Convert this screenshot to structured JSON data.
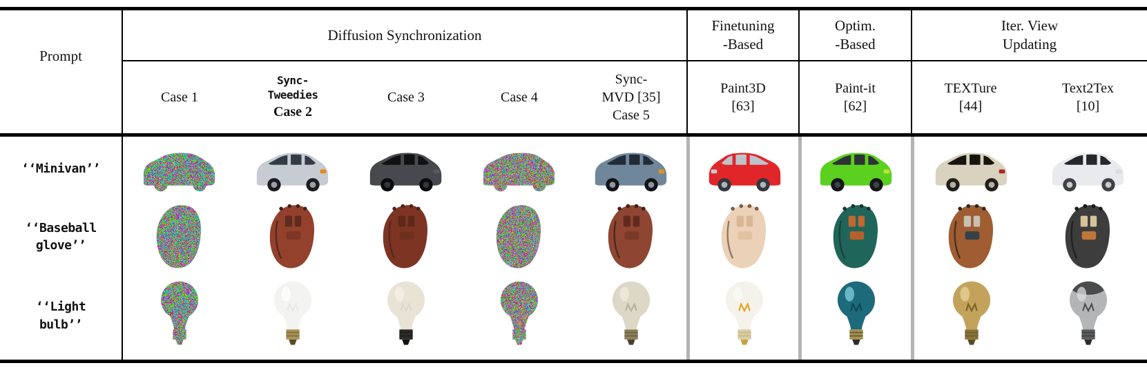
{
  "figure": {
    "colors": {
      "rule_black": "#000000",
      "group_separator_gray": "#b4b4b4",
      "background": "#ffffff"
    },
    "group_headers": [
      {
        "key": "prompt",
        "label": "Prompt"
      },
      {
        "key": "diffusion-synchronization",
        "label": "Diffusion Synchronization"
      },
      {
        "key": "finetuning-based",
        "lines": [
          "Finetuning",
          "-Based"
        ]
      },
      {
        "key": "optim-based",
        "lines": [
          "Optim.",
          "-Based"
        ]
      },
      {
        "key": "iter-view-updating",
        "lines": [
          "Iter. View",
          "Updating"
        ]
      }
    ],
    "method_headers": [
      {
        "key": "case-1",
        "case_label": "Case 1"
      },
      {
        "key": "sync-tweedies-case-2",
        "name_lines": [
          "Sync-",
          "Tweedies"
        ],
        "name_font": "mono",
        "case_label": "Case 2",
        "case_bold": true
      },
      {
        "key": "case-3",
        "case_label": "Case 3"
      },
      {
        "key": "case-4",
        "case_label": "Case 4"
      },
      {
        "key": "sync-mvd-case-5",
        "name_lines": [
          "Sync-",
          "MVD [35]"
        ],
        "case_label": "Case 5"
      },
      {
        "key": "paint3d",
        "name_lines": [
          "Paint3D",
          "[63]"
        ]
      },
      {
        "key": "paint-it",
        "name_lines": [
          "Paint-it",
          "[62]"
        ]
      },
      {
        "key": "texture",
        "name_lines": [
          "TEXTure",
          "[44]"
        ]
      },
      {
        "key": "text2tex",
        "name_lines": [
          "Text2Tex",
          "[10]"
        ]
      }
    ],
    "rows": [
      {
        "key": "minivan",
        "object": "minivan",
        "prompt_lines": [
          "‘‘Minivan’’"
        ],
        "cells": [
          {
            "variant": "noise",
            "seed": "a",
            "desc": "multicolor noise minivan"
          },
          {
            "variant": "shaded",
            "desc": "silver minivan",
            "colors": {
              "body": "#c7cbd2",
              "win": "#333b46",
              "wheel": "#1b1d21",
              "hub": "#9aa0a8",
              "signal": "#e68a1a"
            }
          },
          {
            "variant": "shaded",
            "desc": "dark gray minivan",
            "colors": {
              "body": "#47494f",
              "win": "#0f1113",
              "wheel": "#0b0c0e",
              "hub": "#35373c",
              "signal": "#56585e"
            }
          },
          {
            "variant": "noise",
            "seed": "b",
            "desc": "multicolor noise minivan"
          },
          {
            "variant": "shaded",
            "desc": "blue-gray minivan",
            "colors": {
              "body": "#70879b",
              "win": "#222c36",
              "wheel": "#121418",
              "hub": "#8c96a2",
              "signal": "#e8921f"
            }
          },
          {
            "variant": "shaded",
            "flip": true,
            "desc": "red minivan",
            "colors": {
              "body": "#e02629",
              "win": "#bcc3cb",
              "wheel": "#33373c",
              "hub": "#aeb4ba",
              "signal": "#c4cad0"
            }
          },
          {
            "variant": "shaded",
            "desc": "bright green minivan",
            "colors": {
              "body": "#5bd01f",
              "win": "#2d3237",
              "wheel": "#141619",
              "hub": "#3e4246",
              "signal": "#bfe533"
            }
          },
          {
            "variant": "shaded",
            "desc": "beige minivan",
            "colors": {
              "body": "#d8d2bf",
              "win": "#16140e",
              "wheel": "#211f19",
              "hub": "#b6afa0",
              "signal": "#a9281f"
            }
          },
          {
            "variant": "shaded",
            "desc": "white minivan",
            "colors": {
              "body": "#e8eaed",
              "win": "#25272b",
              "wheel": "#3e4145",
              "hub": "#caccd0",
              "signal": "#d8dadd"
            }
          }
        ]
      },
      {
        "key": "baseball-glove",
        "object": "baseball-glove",
        "prompt_lines": [
          "‘‘Baseball",
          "glove’’"
        ],
        "cells": [
          {
            "variant": "noise",
            "seed": "a",
            "desc": "multicolor noise glove"
          },
          {
            "variant": "shaded",
            "desc": "reddish-brown glove",
            "colors": {
              "body": "#93402d",
              "dark": "#40221a",
              "web": "#5e2c1e",
              "patch": "#7d3525"
            }
          },
          {
            "variant": "shaded",
            "desc": "flat brown glove",
            "colors": {
              "body": "#7d3423",
              "dark": "#4b261c",
              "web": "#5d2818",
              "patch": "#6e2f1f"
            }
          },
          {
            "variant": "noise",
            "seed": "b",
            "desc": "multicolor noise glove"
          },
          {
            "variant": "shaded",
            "desc": "brown leather glove",
            "colors": {
              "body": "#8e4632",
              "dark": "#3e2017",
              "web": "#602a1d",
              "patch": "#7b3929"
            }
          },
          {
            "variant": "shaded",
            "desc": "cream tan glove",
            "colors": {
              "body": "#ebd1b7",
              "dark": "#7b5d45",
              "web": "#d8b795",
              "patch": "#e1c3a3"
            }
          },
          {
            "variant": "shaded",
            "desc": "teal and orange glove",
            "colors": {
              "body": "#20655a",
              "dark": "#173630",
              "web": "#c1682f",
              "patch": "#b3612d"
            }
          },
          {
            "variant": "shaded",
            "desc": "patchy brown-orange glove",
            "colors": {
              "body": "#a05d31",
              "dark": "#2d2721",
              "web": "#c7c1b3",
              "patch": "#35404a"
            }
          },
          {
            "variant": "shaded",
            "desc": "patchy dark-tan glove",
            "colors": {
              "body": "#3d3d3d",
              "dark": "#18191b",
              "web": "#d5c399",
              "patch": "#bf7737"
            }
          }
        ]
      },
      {
        "key": "light-bulb",
        "object": "light-bulb",
        "prompt_lines": [
          "‘‘Light",
          "bulb’’"
        ],
        "cells": [
          {
            "variant": "noise",
            "seed": "a",
            "desc": "multicolor noise bulb"
          },
          {
            "variant": "shaded",
            "desc": "white bulb brass base",
            "colors": {
              "globe": "#f3f3f1",
              "hl": "#ffffff",
              "base": "#ac9458",
              "tip": "#594927",
              "fil": "#e8e8e4"
            }
          },
          {
            "variant": "shaded",
            "desc": "cream bulb black base",
            "colors": {
              "globe": "#e9e3d5",
              "hl": "#f5f1e7",
              "base": "#2a2a28",
              "tip": "#131312",
              "fil": "#ded8ca"
            }
          },
          {
            "variant": "noise",
            "seed": "b",
            "desc": "multicolor noise bulb"
          },
          {
            "variant": "shaded",
            "desc": "clear glass bulb",
            "colors": {
              "globe": "#dcd7c6",
              "hl": "#efebdf",
              "base": "#8c805d",
              "tip": "#4b422b",
              "fil": "#b8b39d"
            }
          },
          {
            "variant": "shaded",
            "desc": "white bulb with filament",
            "colors": {
              "globe": "#f4f2ea",
              "hl": "#fbfaf5",
              "base": "#d8cead",
              "tip": "#c7a33b",
              "fil": "#e1a71b"
            }
          },
          {
            "variant": "shaded",
            "desc": "glossy teal bulb",
            "colors": {
              "globe": "#1d6a7b",
              "hl": "#80d3dc",
              "base": "#a7934d",
              "tip": "#2b2b2b",
              "fil": "#0e4955"
            }
          },
          {
            "variant": "shaded",
            "desc": "golden patterned bulb",
            "colors": {
              "globe": "#c3a35b",
              "hl": "#e7d399",
              "base": "#897539",
              "tip": "#5b4b23",
              "fil": "#796127"
            }
          },
          {
            "variant": "shaded",
            "desc": "silver bulb dark top",
            "colors": {
              "globe": "#b3b5b7",
              "hl": "#dbdde0",
              "base": "#5b5d5f",
              "tip": "#2b2d2f",
              "fil": "#4d4f51",
              "cap": "#494b4d"
            }
          }
        ]
      }
    ]
  }
}
